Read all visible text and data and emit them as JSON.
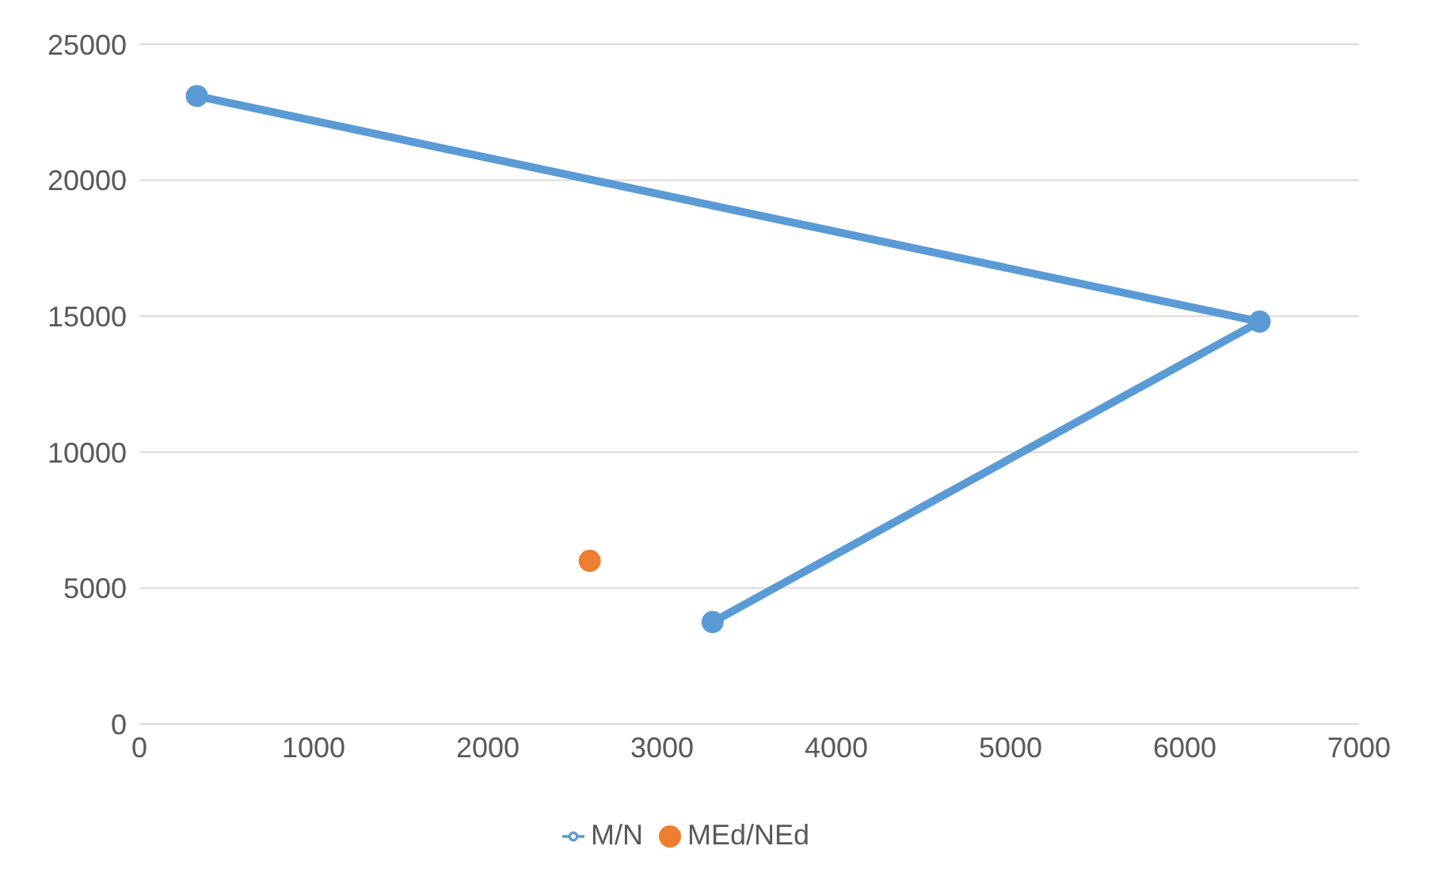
{
  "chart_data": {
    "type": "line",
    "xlim": [
      0,
      7000
    ],
    "xticks": [
      0,
      1000,
      2000,
      3000,
      4000,
      5000,
      6000,
      7000
    ],
    "ylim": [
      0,
      25000
    ],
    "yticks": [
      0,
      5000,
      10000,
      15000,
      20000,
      25000
    ],
    "grid": "y",
    "legend": "bottom",
    "marker": "circle",
    "series": [
      {
        "name": "M/N",
        "color": "#5b9bd5",
        "x": [
          330,
          6430,
          3290
        ],
        "values": [
          23100,
          14800,
          3750
        ]
      },
      {
        "name": "MEd/NEd",
        "type": "scatter",
        "color": "#ed7d31",
        "x": [
          2585
        ],
        "values": [
          6000
        ]
      }
    ]
  }
}
